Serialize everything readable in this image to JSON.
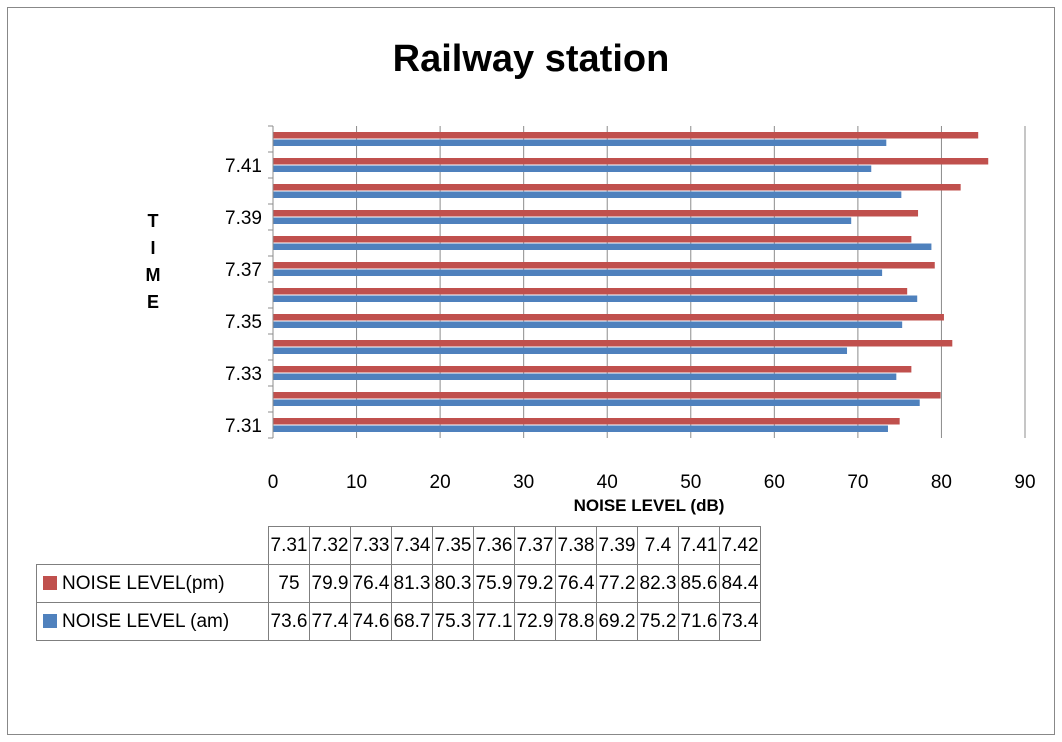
{
  "chart_data": {
    "type": "bar",
    "orientation": "horizontal",
    "title": "Railway station",
    "xlabel": "NOISE LEVEL (dB)",
    "ylabel": "TIME",
    "xlim": [
      0,
      90
    ],
    "x_ticks": [
      0,
      10,
      20,
      30,
      40,
      50,
      60,
      70,
      80,
      90
    ],
    "y_tick_labels": [
      "7.31",
      "7.33",
      "7.35",
      "7.37",
      "7.39",
      "7.41"
    ],
    "grid": "vertical",
    "legend": "data-table",
    "categories": [
      "7.31",
      "7.32",
      "7.33",
      "7.34",
      "7.35",
      "7.36",
      "7.37",
      "7.38",
      "7.39",
      "7.4",
      "7.41",
      "7.42"
    ],
    "series": [
      {
        "name": "NOISE LEVEL(pm)",
        "color": "#c0504d",
        "values": [
          75,
          79.9,
          76.4,
          81.3,
          80.3,
          75.9,
          79.2,
          76.4,
          77.2,
          82.3,
          85.6,
          84.4
        ]
      },
      {
        "name": "NOISE LEVEL (am)",
        "color": "#4f81bd",
        "values": [
          73.6,
          77.4,
          74.6,
          68.7,
          75.3,
          77.1,
          72.9,
          78.8,
          69.2,
          75.2,
          71.6,
          73.4
        ]
      }
    ]
  }
}
